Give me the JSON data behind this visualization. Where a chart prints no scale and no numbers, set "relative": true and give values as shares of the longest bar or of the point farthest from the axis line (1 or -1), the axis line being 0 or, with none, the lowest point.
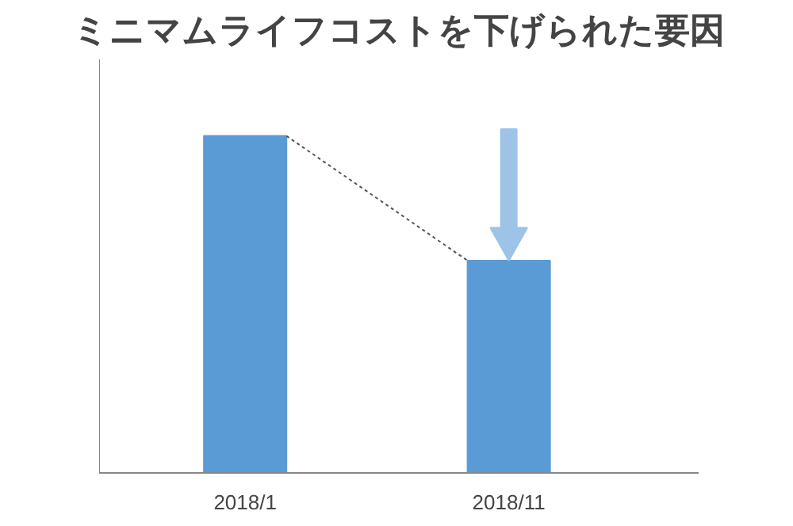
{
  "chart_data": {
    "type": "bar",
    "title": "ミニマムライフコストを下げられた要因",
    "categories": [
      "2018/1",
      "2018/11"
    ],
    "relative": true,
    "series": [
      {
        "color": "#5b9bd5",
        "values": [
          1,
          0.63
        ]
      }
    ],
    "grid": false
  }
}
